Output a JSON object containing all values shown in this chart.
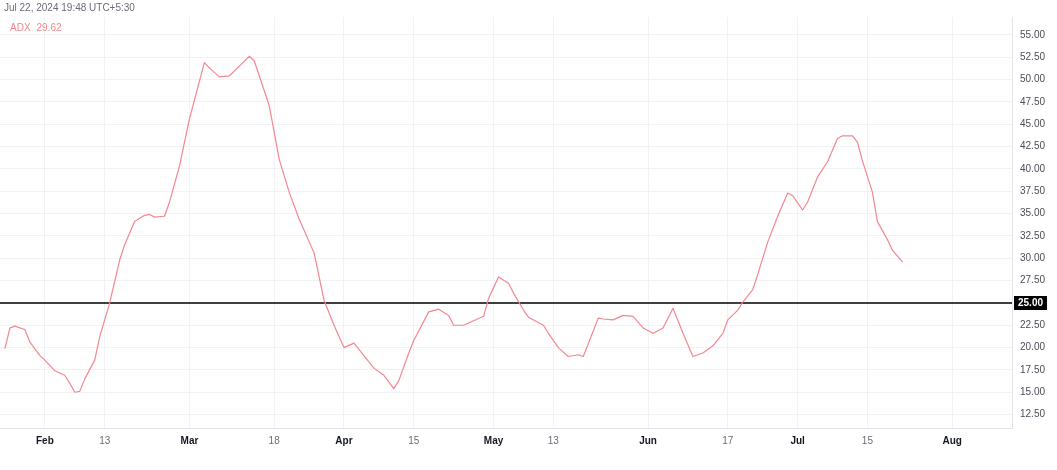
{
  "chart_data": {
    "type": "line",
    "annotations": [
      "Jul 22, 2024 19:48 UTC+5:30",
      "29.62"
    ],
    "legend": "top left",
    "grid": true,
    "x": [
      "2024-01-24",
      "2024-01-25",
      "2024-01-26",
      "2024-01-28",
      "2024-01-29",
      "2024-01-31",
      "2024-02-01",
      "2024-02-03",
      "2024-02-05",
      "2024-02-06",
      "2024-02-07",
      "2024-02-08",
      "2024-02-09",
      "2024-02-11",
      "2024-02-12",
      "2024-02-14",
      "2024-02-16",
      "2024-02-17",
      "2024-02-19",
      "2024-02-21",
      "2024-02-22",
      "2024-02-23",
      "2024-02-25",
      "2024-02-26",
      "2024-02-28",
      "2024-03-01",
      "2024-03-04",
      "2024-03-05",
      "2024-03-07",
      "2024-03-09",
      "2024-03-11",
      "2024-03-13",
      "2024-03-14",
      "2024-03-17",
      "2024-03-19",
      "2024-03-21",
      "2024-03-23",
      "2024-03-26",
      "2024-03-28",
      "2024-03-30",
      "2024-04-01",
      "2024-04-03",
      "2024-04-04",
      "2024-04-07",
      "2024-04-09",
      "2024-04-11",
      "2024-04-12",
      "2024-04-14",
      "2024-04-15",
      "2024-04-18",
      "2024-04-20",
      "2024-04-22",
      "2024-04-23",
      "2024-04-25",
      "2024-04-27",
      "2024-04-29",
      "2024-04-30",
      "2024-05-02",
      "2024-05-04",
      "2024-05-05",
      "2024-05-07",
      "2024-05-08",
      "2024-05-11",
      "2024-05-12",
      "2024-05-14",
      "2024-05-16",
      "2024-05-18",
      "2024-05-19",
      "2024-05-22",
      "2024-05-23",
      "2024-05-25",
      "2024-05-27",
      "2024-05-29",
      "2024-05-31",
      "2024-06-02",
      "2024-06-04",
      "2024-06-06",
      "2024-06-08",
      "2024-06-10",
      "2024-06-12",
      "2024-06-14",
      "2024-06-15",
      "2024-06-16",
      "2024-06-17",
      "2024-06-19",
      "2024-06-20",
      "2024-06-22",
      "2024-06-23",
      "2024-06-25",
      "2024-06-27",
      "2024-06-29",
      "2024-06-30",
      "2024-07-02",
      "2024-07-03",
      "2024-07-05",
      "2024-07-07",
      "2024-07-09",
      "2024-07-10",
      "2024-07-12",
      "2024-07-13",
      "2024-07-14",
      "2024-07-16",
      "2024-07-17",
      "2024-07-19",
      "2024-07-20",
      "2024-07-22"
    ],
    "series": [
      {
        "name": "ADX",
        "color": "#f4868f",
        "values": [
          19.9,
          22.2,
          22.4,
          22.0,
          20.6,
          19.1,
          18.6,
          17.4,
          16.9,
          16.0,
          15.0,
          15.1,
          16.5,
          18.6,
          21.2,
          25.0,
          29.8,
          31.5,
          34.1,
          34.8,
          34.9,
          34.6,
          34.7,
          36.3,
          40.3,
          45.6,
          51.9,
          51.3,
          50.3,
          50.4,
          51.5,
          52.6,
          52.1,
          47.1,
          41.1,
          37.4,
          34.4,
          30.6,
          25.3,
          22.5,
          20.0,
          20.5,
          19.8,
          17.7,
          16.9,
          15.4,
          16.3,
          19.4,
          20.8,
          24.0,
          24.3,
          23.6,
          22.5,
          22.5,
          23.0,
          23.5,
          25.5,
          27.9,
          27.2,
          26.1,
          24.2,
          23.4,
          22.5,
          21.6,
          20.0,
          19.0,
          19.2,
          19.0,
          23.3,
          23.2,
          23.1,
          23.6,
          23.5,
          22.2,
          21.6,
          22.2,
          24.4,
          21.6,
          19.0,
          19.4,
          20.2,
          20.9,
          21.6,
          23.1,
          24.2,
          25.1,
          26.5,
          28.2,
          31.8,
          34.7,
          37.3,
          37.0,
          35.4,
          36.3,
          39.1,
          40.8,
          43.4,
          43.7,
          43.7,
          43.0,
          40.9,
          37.4,
          34.1,
          32.1,
          30.9,
          29.62
        ]
      }
    ],
    "xlim": [
      "2024-01-23",
      "2024-08-13"
    ],
    "xticks": [
      {
        "value": "2024-02-01",
        "label": "Feb"
      },
      {
        "value": "2024-02-13",
        "label": "13"
      },
      {
        "value": "2024-03-01",
        "label": "Mar"
      },
      {
        "value": "2024-03-18",
        "label": "18"
      },
      {
        "value": "2024-04-01",
        "label": "Apr"
      },
      {
        "value": "2024-04-15",
        "label": "15"
      },
      {
        "value": "2024-05-01",
        "label": "May"
      },
      {
        "value": "2024-05-13",
        "label": "13"
      },
      {
        "value": "2024-06-01",
        "label": "Jun"
      },
      {
        "value": "2024-06-17",
        "label": "17"
      },
      {
        "value": "2024-07-01",
        "label": "Jul"
      },
      {
        "value": "2024-07-15",
        "label": "15"
      },
      {
        "value": "2024-08-01",
        "label": "Aug"
      }
    ],
    "ylim": [
      11,
      57
    ],
    "yticks": [
      {
        "value": 12.5,
        "label": "12.50"
      },
      {
        "value": 15,
        "label": "15.00"
      },
      {
        "value": 17.5,
        "label": "17.50"
      },
      {
        "value": 20,
        "label": "20.00"
      },
      {
        "value": 22.5,
        "label": "22.50"
      },
      {
        "value": 27.5,
        "label": "27.50"
      },
      {
        "value": 30,
        "label": "30.00"
      },
      {
        "value": 32.5,
        "label": "32.50"
      },
      {
        "value": 35,
        "label": "35.00"
      },
      {
        "value": 37.5,
        "label": "37.50"
      },
      {
        "value": 40,
        "label": "40.00"
      },
      {
        "value": 42.5,
        "label": "42.50"
      },
      {
        "value": 45,
        "label": "45.00"
      },
      {
        "value": 47.5,
        "label": "47.50"
      },
      {
        "value": 50,
        "label": "50.00"
      },
      {
        "value": 52.5,
        "label": "52.50"
      },
      {
        "value": 55,
        "label": "55.00"
      }
    ],
    "ref_lines": [
      {
        "axis": "y",
        "value": 25,
        "label": "25.00",
        "color": "#000000"
      }
    ]
  }
}
